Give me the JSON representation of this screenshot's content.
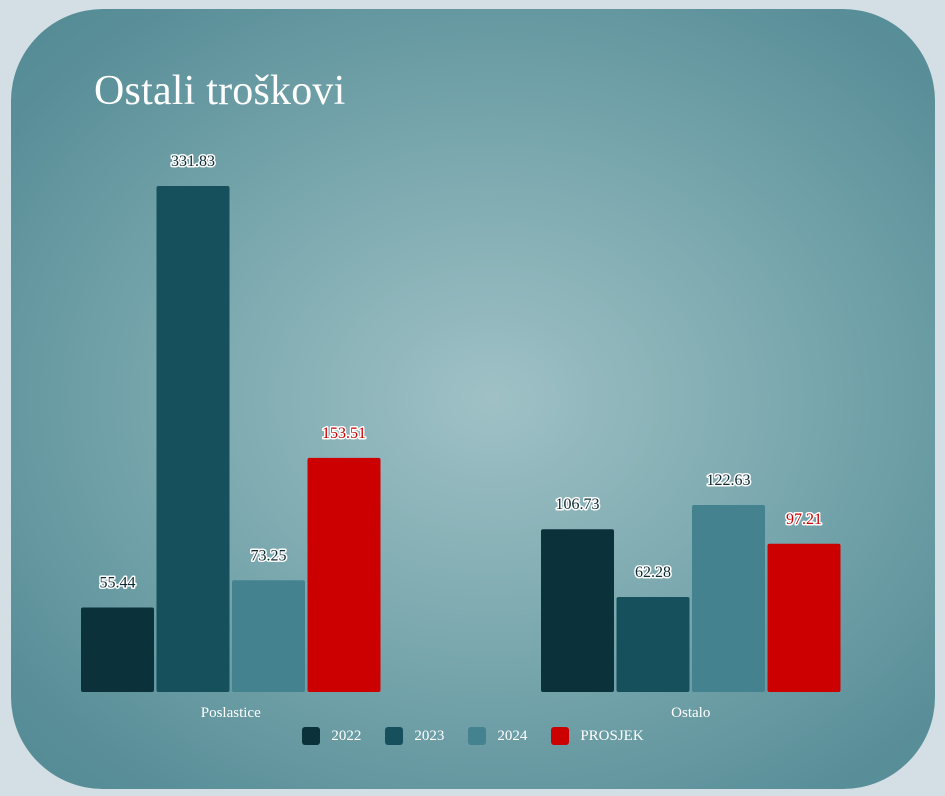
{
  "title": "Ostali troškovi",
  "colors": {
    "2022": "#0b313a",
    "2023": "#15505c",
    "2024": "#458290",
    "PROSJEK": "#cc0000"
  },
  "chart_data": {
    "type": "bar",
    "title": "Ostali troškovi",
    "categories": [
      "Poslastice",
      "Ostalo"
    ],
    "series": [
      {
        "name": "2022",
        "values": [
          55.44,
          106.73
        ],
        "color": "#0b313a"
      },
      {
        "name": "2023",
        "values": [
          331.83,
          62.28
        ],
        "color": "#15505c"
      },
      {
        "name": "2024",
        "values": [
          73.25,
          122.63
        ],
        "color": "#458290"
      },
      {
        "name": "PROSJEK",
        "values": [
          153.51,
          97.21
        ],
        "color": "#cc0000"
      }
    ],
    "ylim": [
      0,
      331.83
    ],
    "grid": false,
    "legend_position": "bottom",
    "data_labels": [
      [
        "55.44",
        "106.73"
      ],
      [
        "331.83",
        "62.28"
      ],
      [
        "73.25",
        "122.63"
      ],
      [
        "153.51",
        "97.21"
      ]
    ]
  }
}
